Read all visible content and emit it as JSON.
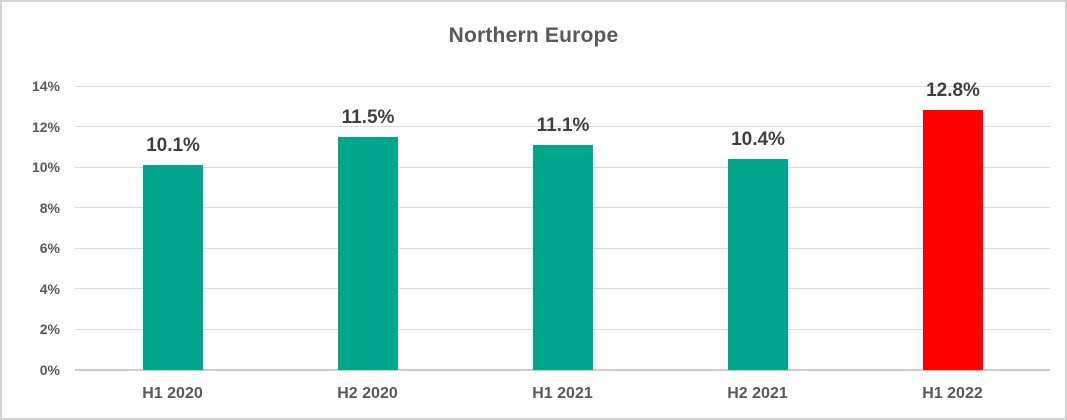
{
  "chart_data": {
    "type": "bar",
    "title": "Northern Europe",
    "categories": [
      "H1 2020",
      "H2 2020",
      "H1 2021",
      "H2 2021",
      "H1 2022"
    ],
    "values": [
      10.1,
      11.5,
      11.1,
      10.4,
      12.8
    ],
    "data_labels": [
      "10.1%",
      "11.5%",
      "11.1%",
      "10.4%",
      "12.8%"
    ],
    "bar_colors": [
      "#00a68c",
      "#00a68c",
      "#00a68c",
      "#00a68c",
      "#ff0000"
    ],
    "xlabel": "",
    "ylabel": "",
    "ylim": [
      0,
      14
    ],
    "ytick_step": 2,
    "ytick_labels": [
      "0%",
      "2%",
      "4%",
      "6%",
      "8%",
      "10%",
      "12%",
      "14%"
    ],
    "grid": "horizontal-only",
    "legend": "none",
    "colors": {
      "series_teal": "#00a68c",
      "highlight_red": "#ff0000",
      "title_text": "#595959",
      "axis_text": "#595959",
      "data_label_text": "#3f3f3f",
      "gridline": "#d9d9d9",
      "frame_border": "#d3d3d3"
    }
  }
}
